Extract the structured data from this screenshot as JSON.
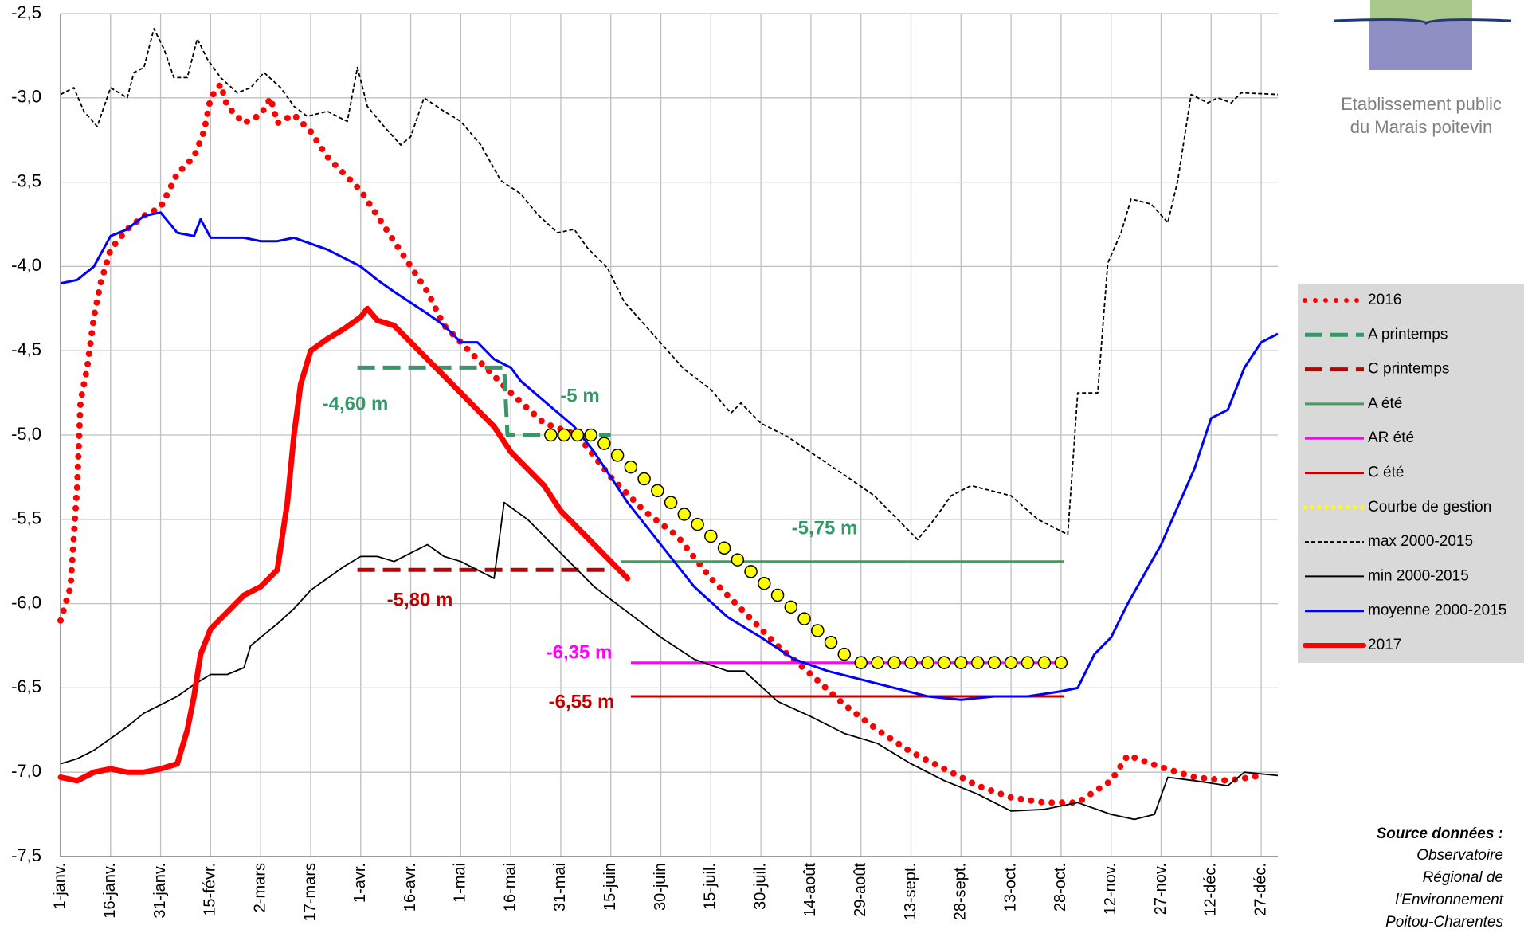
{
  "logo": {
    "lines": [
      "Etablissement public",
      "du Marais poitevin"
    ]
  },
  "source": {
    "title": "Source données :",
    "lines": [
      "Observatoire",
      "Régional de",
      "l'Environnement",
      "Poitou-Charentes"
    ]
  },
  "chart_data": {
    "type": "line",
    "grid": true,
    "legend": "right",
    "xlim": [
      0,
      365
    ],
    "ylim": [
      -7.5,
      -2.5
    ],
    "yticks": [
      {
        "value": -7.5,
        "label": "-7,5"
      },
      {
        "value": -7.0,
        "label": "-7,0"
      },
      {
        "value": -6.5,
        "label": "-6,5"
      },
      {
        "value": -6.0,
        "label": "-6,0"
      },
      {
        "value": -5.5,
        "label": "-5,5"
      },
      {
        "value": -5.0,
        "label": "-5,0"
      },
      {
        "value": -4.5,
        "label": "-4,5"
      },
      {
        "value": -4.0,
        "label": "-4,0"
      },
      {
        "value": -3.5,
        "label": "-3,5"
      },
      {
        "value": -3.0,
        "label": "-3,0"
      },
      {
        "value": -2.5,
        "label": "-2,5"
      }
    ],
    "xticks": [
      {
        "value": 0,
        "label": "1-janv."
      },
      {
        "value": 15,
        "label": "16-janv."
      },
      {
        "value": 30,
        "label": "31-janv."
      },
      {
        "value": 45,
        "label": "15-févr."
      },
      {
        "value": 60,
        "label": "2-mars"
      },
      {
        "value": 75,
        "label": "17-mars"
      },
      {
        "value": 90,
        "label": "1-avr."
      },
      {
        "value": 105,
        "label": "16-avr."
      },
      {
        "value": 120,
        "label": "1-mai"
      },
      {
        "value": 135,
        "label": "16-mai"
      },
      {
        "value": 150,
        "label": "31-mai"
      },
      {
        "value": 165,
        "label": "15-juin"
      },
      {
        "value": 180,
        "label": "30-juin"
      },
      {
        "value": 195,
        "label": "15-juil."
      },
      {
        "value": 210,
        "label": "30-juil."
      },
      {
        "value": 225,
        "label": "14-août"
      },
      {
        "value": 240,
        "label": "29-août"
      },
      {
        "value": 255,
        "label": "13-sept."
      },
      {
        "value": 270,
        "label": "28-sept."
      },
      {
        "value": 285,
        "label": "13-oct."
      },
      {
        "value": 300,
        "label": "28-oct."
      },
      {
        "value": 315,
        "label": "12-nov."
      },
      {
        "value": 330,
        "label": "27-nov."
      },
      {
        "value": 345,
        "label": "12-déc."
      },
      {
        "value": 360,
        "label": "27-déc."
      }
    ],
    "series": [
      {
        "name": "2016",
        "color": "#ff0000",
        "line_style": "dotted",
        "x": [
          0,
          3,
          5,
          6,
          8,
          10,
          12,
          15,
          20,
          25,
          30,
          35,
          40,
          43,
          45,
          48,
          50,
          55,
          60,
          63,
          65,
          70,
          75,
          80,
          85,
          90,
          95,
          100,
          105,
          110,
          115,
          120,
          125,
          130,
          135,
          145,
          155,
          165,
          175,
          185,
          195,
          205,
          215,
          225,
          235,
          245,
          255,
          265,
          275,
          285,
          295,
          305,
          315,
          320,
          330,
          340,
          350,
          360
        ],
        "values": [
          -6.1,
          -5.9,
          -5.3,
          -4.8,
          -4.6,
          -4.3,
          -4.1,
          -3.9,
          -3.78,
          -3.7,
          -3.65,
          -3.45,
          -3.35,
          -3.2,
          -3.0,
          -2.92,
          -3.05,
          -3.15,
          -3.1,
          -3.0,
          -3.15,
          -3.1,
          -3.2,
          -3.35,
          -3.45,
          -3.55,
          -3.7,
          -3.85,
          -4.0,
          -4.15,
          -4.35,
          -4.45,
          -4.55,
          -4.65,
          -4.75,
          -4.93,
          -5.0,
          -5.25,
          -5.45,
          -5.6,
          -5.85,
          -6.05,
          -6.25,
          -6.42,
          -6.6,
          -6.75,
          -6.88,
          -6.98,
          -7.08,
          -7.15,
          -7.18,
          -7.18,
          -7.05,
          -6.9,
          -6.97,
          -7.03,
          -7.05,
          -7.02
        ]
      },
      {
        "name": "A printemps",
        "color": "#339966",
        "line_style": "dashed",
        "x": [
          89,
          133,
          134,
          165
        ],
        "values": [
          -4.6,
          -4.6,
          -5.0,
          -5.0
        ]
      },
      {
        "name": "C printemps",
        "color": "#c00000",
        "line_style": "dashed",
        "x": [
          89,
          165
        ],
        "values": [
          -5.8,
          -5.8
        ]
      },
      {
        "name": "A été",
        "color": "#3aa05a",
        "line_style": "solid",
        "x": [
          168,
          301
        ],
        "values": [
          -5.75,
          -5.75
        ]
      },
      {
        "name": "AR été",
        "color": "#ff00ff",
        "line_style": "solid",
        "x": [
          171,
          301
        ],
        "values": [
          -6.35,
          -6.35
        ]
      },
      {
        "name": "C été",
        "color": "#c00000",
        "line_style": "solid",
        "x": [
          171,
          301
        ],
        "values": [
          -6.55,
          -6.55
        ]
      },
      {
        "name": "Courbe de gestion",
        "color": "#ffff00",
        "line_style": "markers",
        "x": [
          147,
          151,
          155,
          159,
          163,
          167,
          171,
          175,
          179,
          183,
          187,
          191,
          195,
          199,
          203,
          207,
          211,
          215,
          219,
          223,
          227,
          231,
          235,
          240,
          245,
          250,
          255,
          260,
          265,
          270,
          275,
          280,
          285,
          290,
          295,
          300
        ],
        "values": [
          -5.0,
          -5.0,
          -5.0,
          -5.0,
          -5.05,
          -5.12,
          -5.19,
          -5.26,
          -5.33,
          -5.4,
          -5.47,
          -5.53,
          -5.6,
          -5.67,
          -5.74,
          -5.81,
          -5.88,
          -5.95,
          -6.02,
          -6.09,
          -6.16,
          -6.23,
          -6.3,
          -6.35,
          -6.35,
          -6.35,
          -6.35,
          -6.35,
          -6.35,
          -6.35,
          -6.35,
          -6.35,
          -6.35,
          -6.35,
          -6.35,
          -6.35
        ]
      },
      {
        "name": "max 2000-2015",
        "color": "#000000",
        "line_style": "thin-dashed",
        "x": [
          0,
          4,
          7,
          11,
          15,
          20,
          22,
          25,
          28,
          31,
          34,
          38,
          41,
          44,
          48,
          53,
          57,
          61,
          66,
          70,
          74,
          80,
          86,
          89,
          92,
          97,
          102,
          105,
          109,
          115,
          120,
          126,
          132,
          138,
          143,
          149,
          154,
          158,
          164,
          169,
          178,
          187,
          195,
          201,
          204,
          210,
          218,
          227,
          236,
          244,
          250,
          257,
          262,
          267,
          273,
          279,
          285,
          293,
          299,
          302,
          305,
          311,
          314,
          318,
          321,
          327,
          332,
          335,
          339,
          344,
          347,
          351,
          354,
          365
        ],
        "values": [
          -2.98,
          -2.94,
          -3.08,
          -3.17,
          -2.94,
          -3.0,
          -2.85,
          -2.82,
          -2.59,
          -2.71,
          -2.88,
          -2.88,
          -2.65,
          -2.77,
          -2.88,
          -2.97,
          -2.94,
          -2.85,
          -2.94,
          -3.05,
          -3.11,
          -3.08,
          -3.14,
          -2.82,
          -3.05,
          -3.17,
          -3.28,
          -3.23,
          -3.0,
          -3.08,
          -3.14,
          -3.28,
          -3.49,
          -3.57,
          -3.69,
          -3.8,
          -3.78,
          -3.89,
          -4.01,
          -4.21,
          -4.41,
          -4.61,
          -4.73,
          -4.87,
          -4.81,
          -4.93,
          -5.01,
          -5.13,
          -5.25,
          -5.36,
          -5.48,
          -5.62,
          -5.5,
          -5.36,
          -5.3,
          -5.33,
          -5.36,
          -5.5,
          -5.56,
          -5.59,
          -4.75,
          -4.75,
          -3.98,
          -3.8,
          -3.6,
          -3.63,
          -3.74,
          -3.49,
          -2.98,
          -3.03,
          -3.0,
          -3.03,
          -2.97,
          -2.98
        ]
      },
      {
        "name": "min 2000-2015",
        "color": "#000000",
        "line_style": "thin",
        "x": [
          0,
          5,
          10,
          15,
          20,
          25,
          30,
          35,
          40,
          45,
          50,
          55,
          57,
          60,
          65,
          70,
          75,
          80,
          85,
          90,
          95,
          100,
          105,
          110,
          115,
          120,
          125,
          130,
          133,
          140,
          150,
          160,
          170,
          180,
          190,
          200,
          205,
          215,
          225,
          235,
          245,
          255,
          265,
          275,
          285,
          295,
          305,
          315,
          322,
          328,
          332,
          340,
          350,
          355,
          365
        ],
        "values": [
          -6.95,
          -6.92,
          -6.87,
          -6.8,
          -6.73,
          -6.65,
          -6.6,
          -6.55,
          -6.48,
          -6.42,
          -6.42,
          -6.38,
          -6.25,
          -6.2,
          -6.12,
          -6.03,
          -5.92,
          -5.85,
          -5.78,
          -5.72,
          -5.72,
          -5.75,
          -5.7,
          -5.65,
          -5.72,
          -5.75,
          -5.8,
          -5.85,
          -5.4,
          -5.5,
          -5.7,
          -5.9,
          -6.05,
          -6.2,
          -6.33,
          -6.4,
          -6.4,
          -6.58,
          -6.67,
          -6.77,
          -6.83,
          -6.95,
          -7.05,
          -7.13,
          -7.23,
          -7.22,
          -7.18,
          -7.25,
          -7.28,
          -7.25,
          -7.03,
          -7.05,
          -7.08,
          -7.0,
          -7.02
        ]
      },
      {
        "name": "moyenne 2000-2015",
        "color": "#0000ff",
        "line_style": "solid",
        "x": [
          0,
          5,
          10,
          15,
          20,
          25,
          30,
          35,
          40,
          42,
          45,
          55,
          60,
          65,
          70,
          80,
          90,
          95,
          100,
          110,
          115,
          120,
          125,
          130,
          135,
          138,
          154,
          160,
          170,
          180,
          190,
          200,
          210,
          220,
          230,
          240,
          250,
          260,
          270,
          280,
          290,
          300,
          305,
          310,
          315,
          320,
          330,
          340,
          345,
          350,
          355,
          360,
          365
        ],
        "values": [
          -4.1,
          -4.08,
          -4.0,
          -3.82,
          -3.78,
          -3.7,
          -3.68,
          -3.8,
          -3.82,
          -3.72,
          -3.83,
          -3.83,
          -3.85,
          -3.85,
          -3.83,
          -3.9,
          -4.0,
          -4.08,
          -4.15,
          -4.28,
          -4.35,
          -4.45,
          -4.45,
          -4.55,
          -4.6,
          -4.68,
          -4.95,
          -5.1,
          -5.4,
          -5.65,
          -5.9,
          -6.08,
          -6.2,
          -6.33,
          -6.4,
          -6.45,
          -6.5,
          -6.55,
          -6.57,
          -6.55,
          -6.55,
          -6.52,
          -6.5,
          -6.3,
          -6.2,
          -6.0,
          -5.65,
          -5.2,
          -4.9,
          -4.85,
          -4.6,
          -4.45,
          -4.4
        ]
      },
      {
        "name": "2017",
        "color": "#ff0000",
        "line_style": "thick",
        "x": [
          0,
          5,
          10,
          15,
          20,
          25,
          30,
          35,
          38,
          40,
          42,
          45,
          50,
          55,
          60,
          65,
          68,
          70,
          72,
          75,
          80,
          85,
          90,
          92,
          95,
          100,
          105,
          110,
          115,
          120,
          125,
          130,
          135,
          140,
          145,
          150,
          155,
          160,
          165,
          170
        ],
        "values": [
          -7.03,
          -7.05,
          -7.0,
          -6.98,
          -7.0,
          -7.0,
          -6.98,
          -6.95,
          -6.75,
          -6.55,
          -6.3,
          -6.15,
          -6.05,
          -5.95,
          -5.9,
          -5.8,
          -5.4,
          -5.0,
          -4.7,
          -4.5,
          -4.43,
          -4.37,
          -4.3,
          -4.25,
          -4.32,
          -4.35,
          -4.45,
          -4.55,
          -4.65,
          -4.75,
          -4.85,
          -4.95,
          -5.1,
          -5.2,
          -5.3,
          -5.45,
          -5.55,
          -5.65,
          -5.75,
          -5.85
        ]
      }
    ],
    "annotations": [
      {
        "text": "-4,60 m",
        "color": "#339966"
      },
      {
        "text": "-5 m",
        "color": "#339966"
      },
      {
        "text": "-5,75 m",
        "color": "#339966"
      },
      {
        "text": "-5,80 m",
        "color": "#c00000"
      },
      {
        "text": "-6,35 m",
        "color": "#ff00ff"
      },
      {
        "text": "-6,55 m",
        "color": "#c00000"
      }
    ]
  }
}
